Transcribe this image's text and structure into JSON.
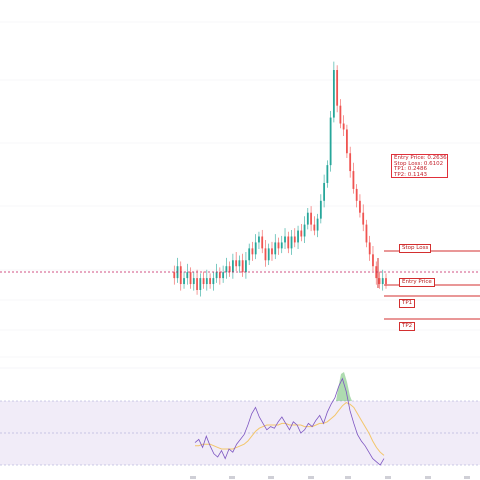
{
  "chart_data": {
    "type": "candlestick",
    "info_box": {
      "lines": [
        "Entry Price: 0.2636",
        "Stop Loss: 0.6102",
        "TP1: 0.2486",
        "TP2: 0.1143"
      ],
      "border_color": "#e0303a",
      "text_color": "#c3202a"
    },
    "levels": [
      {
        "key": "stop_loss",
        "label": "Stop Loss",
        "price": 0.6102
      },
      {
        "key": "entry",
        "label": "Entry Price",
        "price": 0.2636
      },
      {
        "key": "tp1",
        "label": "TP1",
        "price": 0.2486
      },
      {
        "key": "tp2",
        "label": "TP2",
        "price": 0.1143
      }
    ],
    "colors": {
      "up": "#26a69a",
      "down": "#ef5350",
      "level_line": "#d32f2f",
      "current_price_line": "#c2185b",
      "rsi_line": "#7e57c2",
      "rsi_ma": "#f3c66b",
      "rsi_band": "#ede7f6",
      "rsi_overbought_fill": "#4caf50",
      "rsi_oversold_fill": "#f44336"
    },
    "price_series": [
      0.32,
      0.31,
      0.33,
      0.3,
      0.31,
      0.32,
      0.3,
      0.31,
      0.29,
      0.31,
      0.3,
      0.31,
      0.3,
      0.31,
      0.32,
      0.31,
      0.32,
      0.33,
      0.32,
      0.34,
      0.33,
      0.34,
      0.32,
      0.34,
      0.36,
      0.35,
      0.37,
      0.38,
      0.36,
      0.34,
      0.36,
      0.35,
      0.37,
      0.36,
      0.37,
      0.38,
      0.36,
      0.38,
      0.37,
      0.39,
      0.38,
      0.4,
      0.42,
      0.4,
      0.39,
      0.41,
      0.44,
      0.47,
      0.5,
      0.58,
      0.66,
      0.6,
      0.57,
      0.56,
      0.52,
      0.49,
      0.46,
      0.44,
      0.42,
      0.4,
      0.37,
      0.35,
      0.33,
      0.31,
      0.3,
      0.31,
      0.3
    ],
    "rsi_series": [
      44,
      46,
      41,
      48,
      42,
      37,
      35,
      39,
      34,
      40,
      38,
      43,
      46,
      49,
      55,
      62,
      66,
      60,
      56,
      52,
      54,
      53,
      57,
      60,
      56,
      52,
      57,
      55,
      50,
      52,
      56,
      54,
      58,
      61,
      56,
      63,
      68,
      72,
      79,
      84,
      76,
      64,
      56,
      49,
      45,
      42,
      38,
      34,
      32,
      30,
      34
    ],
    "rsi_ma_series": [
      42,
      42,
      43,
      43,
      43,
      42,
      41,
      40,
      40,
      40,
      40,
      41,
      42,
      43,
      45,
      48,
      51,
      53,
      54,
      55,
      55,
      55,
      55,
      56,
      56,
      55,
      55,
      55,
      55,
      54,
      54,
      54,
      55,
      56,
      56,
      57,
      59,
      61,
      64,
      67,
      69,
      68,
      66,
      62,
      58,
      54,
      50,
      45,
      41,
      38,
      36
    ]
  }
}
